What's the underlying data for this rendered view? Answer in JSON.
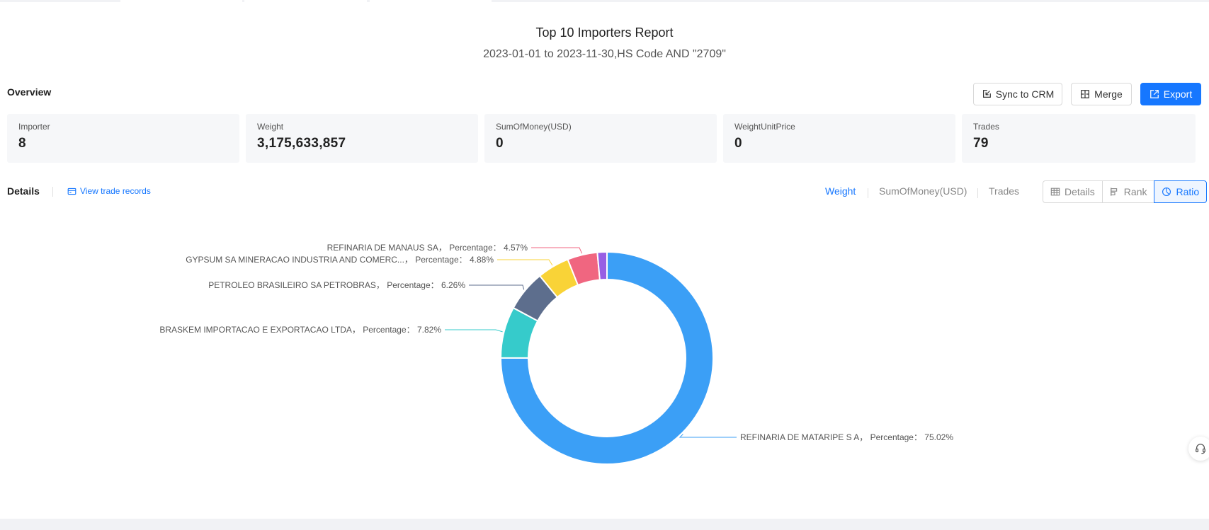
{
  "report": {
    "title": "Top 10 Importers Report",
    "subtitle": "2023-01-01 to 2023-11-30,HS Code AND \"2709\""
  },
  "overview": {
    "label": "Overview",
    "buttons": {
      "sync": "Sync to CRM",
      "merge": "Merge",
      "export": "Export"
    },
    "stats": [
      {
        "label": "Importer",
        "value": "8"
      },
      {
        "label": "Weight",
        "value": "3,175,633,857"
      },
      {
        "label": "SumOfMoney(USD)",
        "value": "0"
      },
      {
        "label": "WeightUnitPrice",
        "value": "0"
      },
      {
        "label": "Trades",
        "value": "79"
      }
    ]
  },
  "details": {
    "label": "Details",
    "view_records": "View trade records",
    "metric_tabs": [
      "Weight",
      "SumOfMoney(USD)",
      "Trades"
    ],
    "active_metric": "Weight",
    "view_modes": [
      "Details",
      "Rank",
      "Ratio"
    ],
    "active_view": "Ratio"
  },
  "colors": {
    "accent": "#1677ff",
    "slices": [
      "#3b9ff6",
      "#36cbcb",
      "#5d6e8d",
      "#f9d337",
      "#f06680",
      "#975fe4"
    ]
  },
  "chart_data": {
    "type": "pie",
    "variant": "donut",
    "percentage_label": "Percentage：",
    "slices": [
      {
        "name": "REFINARIA DE MATARIPE S A",
        "percentage": 75.02,
        "label": "75.02%"
      },
      {
        "name": "BRASKEM IMPORTACAO E EXPORTACAO LTDA",
        "percentage": 7.82,
        "label": "7.82%"
      },
      {
        "name": "PETROLEO BRASILEIRO SA PETROBRAS",
        "percentage": 6.26,
        "label": "6.26%"
      },
      {
        "name": "GYPSUM SA MINERACAO INDUSTRIA AND COMERC...",
        "percentage": 4.88,
        "label": "4.88%"
      },
      {
        "name": "REFINARIA DE MANAUS SA",
        "percentage": 4.57,
        "label": "4.57%"
      },
      {
        "name": "",
        "percentage": 1.45,
        "label": ""
      }
    ]
  },
  "icons": {
    "sync": "sync-crm-icon",
    "merge": "merge-icon",
    "export": "export-icon",
    "records": "records-card-icon",
    "details": "table-icon",
    "rank": "rank-bars-icon",
    "ratio": "pie-icon",
    "support": "headset-icon"
  }
}
